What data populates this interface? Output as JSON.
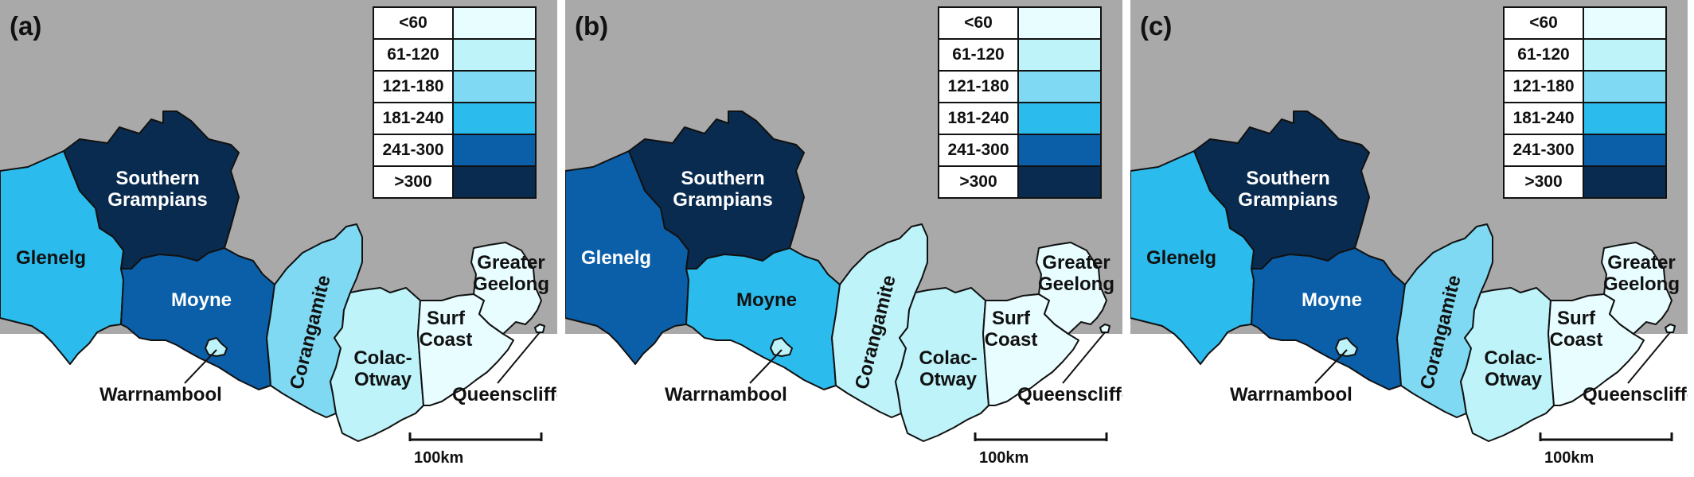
{
  "legend": {
    "classes": [
      {
        "label": "<60",
        "color": "#e8fdff"
      },
      {
        "label": "61-120",
        "color": "#bdf3f9"
      },
      {
        "label": "121-180",
        "color": "#7fd9f2"
      },
      {
        "label": "181-240",
        "color": "#2bbced"
      },
      {
        "label": "241-300",
        "color": "#0a5fa8"
      },
      {
        "label": ">300",
        "color": "#0a2b50"
      }
    ]
  },
  "background": {
    "land": "#a9a9a9",
    "sea": "#ffffff",
    "border": "#111111"
  },
  "regions": {
    "glenelg": "Glenelg",
    "southern_grampians": "Southern Grampians",
    "moyne": "Moyne",
    "corangamite": "Corangamite",
    "colac_otway": "Colac-Otway",
    "surf_coast": "Surf Coast",
    "greater_geelong": "Greater Geelong",
    "warrnambool": "Warrnambool",
    "queenscliffe": "Queenscliffe"
  },
  "scale_bar": {
    "label": "100km"
  },
  "panels": [
    {
      "label": "(a)",
      "classes": {
        "glenelg": 3,
        "southern_grampians": 5,
        "moyne": 4,
        "corangamite": 2,
        "colac_otway": 1,
        "surf_coast": 0,
        "greater_geelong": 0,
        "warrnambool": 1,
        "queenscliffe": 0
      }
    },
    {
      "label": "(b)",
      "classes": {
        "glenelg": 4,
        "southern_grampians": 5,
        "moyne": 3,
        "corangamite": 1,
        "colac_otway": 1,
        "surf_coast": 0,
        "greater_geelong": 0,
        "warrnambool": 1,
        "queenscliffe": 0
      }
    },
    {
      "label": "(c)",
      "classes": {
        "glenelg": 3,
        "southern_grampians": 5,
        "moyne": 4,
        "corangamite": 2,
        "colac_otway": 1,
        "surf_coast": 0,
        "greater_geelong": 0,
        "warrnambool": 1,
        "queenscliffe": 0
      }
    }
  ]
}
